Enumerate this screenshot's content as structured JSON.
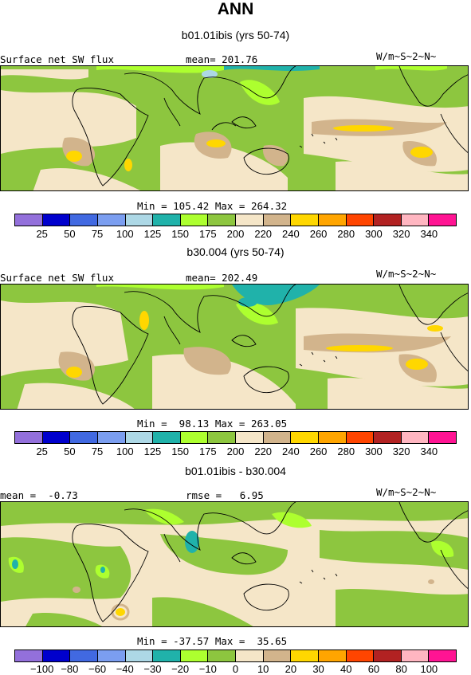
{
  "title": "ANN",
  "panels": [
    {
      "title": "b01.01ibis (yrs 50-74)",
      "left_label": "Surface net SW flux",
      "center_label": "mean= 201.76",
      "units": "W/m~S~2~N~",
      "minmax": "Min = 105.42 Max = 264.32",
      "colorbar": "abs"
    },
    {
      "title": "b30.004 (yrs 50-74)",
      "left_label": "Surface net SW flux",
      "center_label": "mean= 202.49",
      "units": "W/m~S~2~N~",
      "minmax": "Min =  98.13 Max = 263.05",
      "colorbar": "abs"
    },
    {
      "title": "b01.01ibis - b30.004",
      "left_label": "mean =  -0.73",
      "center_label": "rmse =   6.95",
      "units": "W/m~S~2~N~",
      "minmax": "Min = -37.57 Max =  35.65",
      "colorbar": "diff"
    }
  ],
  "colorbars": {
    "abs": {
      "colors": [
        "#9370DB",
        "#0000CD",
        "#4169E1",
        "#7B9EF0",
        "#ADD8E6",
        "#20B2AA",
        "#ADFF2F",
        "#8DC63F",
        "#F5E6C8",
        "#D2B48C",
        "#FFD700",
        "#FFA500",
        "#FF4500",
        "#B22222",
        "#FFB6C1",
        "#FF1493"
      ],
      "labels": [
        "25",
        "50",
        "75",
        "100",
        "125",
        "150",
        "175",
        "200",
        "220",
        "240",
        "260",
        "280",
        "300",
        "320",
        "340"
      ]
    },
    "diff": {
      "colors": [
        "#9370DB",
        "#0000CD",
        "#4169E1",
        "#7B9EF0",
        "#ADD8E6",
        "#20B2AA",
        "#ADFF2F",
        "#8DC63F",
        "#F5E6C8",
        "#D2B48C",
        "#FFD700",
        "#FFA500",
        "#FF4500",
        "#B22222",
        "#FFB6C1",
        "#FF1493"
      ],
      "labels": [
        "−100",
        "−80",
        "−60",
        "−40",
        "−30",
        "−20",
        "−10",
        "0",
        "10",
        "20",
        "30",
        "40",
        "60",
        "80",
        "100"
      ]
    }
  },
  "chart_data": [
    {
      "type": "heatmap",
      "title": "b01.01ibis (yrs 50-74)",
      "variable": "Surface net SW flux",
      "units": "W/m~S~2~N~",
      "mean": 201.76,
      "min": 105.42,
      "max": 264.32,
      "contour_levels": [
        25,
        50,
        75,
        100,
        125,
        150,
        175,
        200,
        220,
        240,
        260,
        280,
        300,
        320,
        340
      ]
    },
    {
      "type": "heatmap",
      "title": "b30.004 (yrs 50-74)",
      "variable": "Surface net SW flux",
      "units": "W/m~S~2~N~",
      "mean": 202.49,
      "min": 98.13,
      "max": 263.05,
      "contour_levels": [
        25,
        50,
        75,
        100,
        125,
        150,
        175,
        200,
        220,
        240,
        260,
        280,
        300,
        320,
        340
      ]
    },
    {
      "type": "heatmap",
      "title": "b01.01ibis - b30.004",
      "units": "W/m~S~2~N~",
      "mean": -0.73,
      "rmse": 6.95,
      "min": -37.57,
      "max": 35.65,
      "contour_levels": [
        -100,
        -80,
        -60,
        -40,
        -30,
        -20,
        -10,
        0,
        10,
        20,
        30,
        40,
        60,
        80,
        100
      ]
    }
  ]
}
